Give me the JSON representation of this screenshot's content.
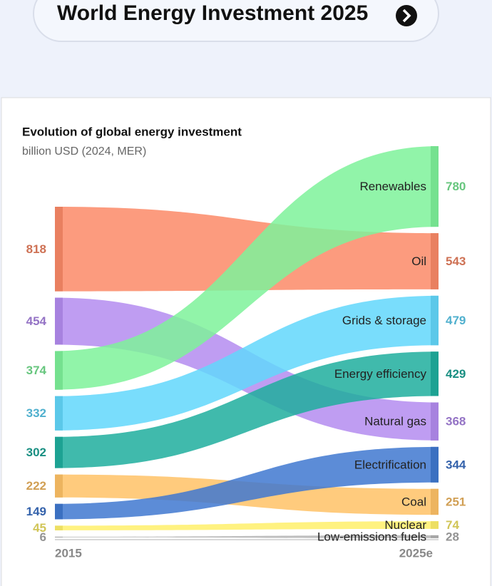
{
  "header": {
    "title": "World Energy Investment 2025"
  },
  "chart_data": {
    "type": "slope-band",
    "title": "Evolution of global energy investment",
    "subtitle": "billion USD (2024, MER)",
    "categories": [
      "2015",
      "2025e"
    ],
    "series": [
      {
        "name": "Oil",
        "color": "#fb8a67",
        "values": [
          818,
          543
        ]
      },
      {
        "name": "Natural gas",
        "color": "#b48cf0",
        "values": [
          454,
          368
        ]
      },
      {
        "name": "Renewables",
        "color": "#7ef29a",
        "values": [
          374,
          780
        ]
      },
      {
        "name": "Grids & storage",
        "color": "#62d7fb",
        "values": [
          332,
          479
        ]
      },
      {
        "name": "Energy efficiency",
        "color": "#1fae9e",
        "values": [
          302,
          429
        ]
      },
      {
        "name": "Coal",
        "color": "#ffc266",
        "values": [
          222,
          251
        ]
      },
      {
        "name": "Electrification",
        "color": "#3f78d0",
        "values": [
          149,
          344
        ]
      },
      {
        "name": "Nuclear",
        "color": "#fff06a",
        "values": [
          45,
          74
        ]
      },
      {
        "name": "Low-emissions fuels",
        "color": "#b3b3b3",
        "values": [
          6,
          28
        ]
      }
    ]
  }
}
